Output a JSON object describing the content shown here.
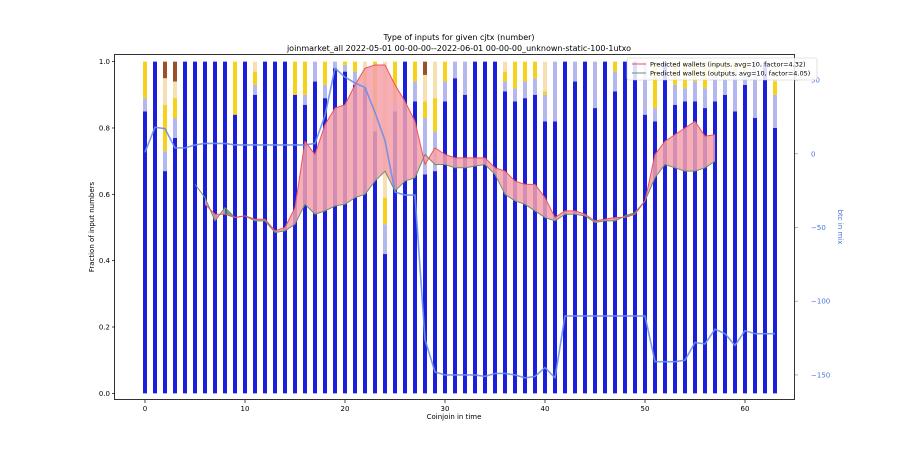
{
  "chart_data": {
    "type": "bar",
    "title": "Type of inputs for given cjtx (number)",
    "subtitle": "joinmarket_all 2022-05-01 00-00-00--2022-06-01 00-00-00_unknown-static-100-1utxo",
    "xlabel": "Coinjoin in time",
    "ylabel": "Fraction of input numbers",
    "y2label": "btc in mix",
    "xlim": [
      -3,
      65
    ],
    "ylim": [
      -0.02,
      1.02
    ],
    "y2lim": [
      -167,
      67
    ],
    "x_ticks": [
      "0",
      "10",
      "20",
      "30",
      "40",
      "50",
      "60"
    ],
    "y_ticks": [
      "0.0",
      "0.2",
      "0.4",
      "0.6",
      "0.8",
      "1.0"
    ],
    "y2_ticks": [
      "50",
      "0",
      "−50",
      "−100",
      "−150"
    ],
    "colors": {
      "blue_bar": "#1a1fdc",
      "lavender": "#b4b8ee",
      "yellow": "#f7d21c",
      "wheat": "#f6dfb0",
      "brown": "#9b4f2a",
      "orange": "#f2a23a",
      "inputs_line": "#f0505a",
      "inputs_fill": "#f4a1aa",
      "outputs_line": "#6b8f6b",
      "outputs_fill": "#2f8f6b",
      "btc_line": "#6d8ee8"
    },
    "bars": [
      {
        "x": 0,
        "segs": [
          0.85,
          0.04,
          0.11
        ]
      },
      {
        "x": 1,
        "segs": [
          1.0
        ]
      },
      {
        "x": 2,
        "segs": [
          0.67,
          0.06,
          0.14,
          0.08,
          0.05
        ]
      },
      {
        "x": 3,
        "segs": [
          0.77,
          0.06,
          0.06,
          0.05,
          0.06
        ]
      },
      {
        "x": 4,
        "segs": [
          1.0
        ]
      },
      {
        "x": 5,
        "segs": [
          1.0
        ]
      },
      {
        "x": 6,
        "segs": [
          1.0
        ]
      },
      {
        "x": 7,
        "segs": [
          1.0
        ]
      },
      {
        "x": 8,
        "segs": [
          1.0
        ]
      },
      {
        "x": 9,
        "segs": [
          0.84,
          0.0,
          0.16
        ]
      },
      {
        "x": 10,
        "segs": [
          1.0
        ]
      },
      {
        "x": 11,
        "segs": [
          0.9,
          0.03,
          0.04,
          0.03
        ]
      },
      {
        "x": 12,
        "segs": [
          1.0
        ]
      },
      {
        "x": 13,
        "segs": [
          1.0
        ]
      },
      {
        "x": 14,
        "segs": [
          1.0
        ]
      },
      {
        "x": 15,
        "segs": [
          0.9,
          0.0,
          0.1
        ]
      },
      {
        "x": 16,
        "segs": [
          0.87,
          0.03,
          0.1
        ]
      },
      {
        "x": 17,
        "segs": [
          0.94,
          0.06
        ]
      },
      {
        "x": 18,
        "segs": [
          0.89,
          0.04,
          0.07
        ]
      },
      {
        "x": 19,
        "segs": [
          0.98,
          0.02
        ]
      },
      {
        "x": 20,
        "segs": [
          0.97,
          0.02,
          0.01
        ]
      },
      {
        "x": 21,
        "segs": [
          0.93,
          0.04,
          0.03
        ]
      },
      {
        "x": 22,
        "segs": [
          0.92,
          0.02,
          0.03,
          0.03
        ]
      },
      {
        "x": 23,
        "segs": [
          0.79,
          0.03,
          0.18
        ]
      },
      {
        "x": 24,
        "segs": [
          0.42,
          0.09,
          0.08,
          0.41
        ]
      },
      {
        "x": 25,
        "segs": [
          0.85,
          0.03,
          0.12
        ]
      },
      {
        "x": 26,
        "segs": [
          1.0
        ]
      },
      {
        "x": 27,
        "segs": [
          0.88,
          0.06,
          0.06
        ]
      },
      {
        "x": 28,
        "segs": [
          0.66,
          0.17,
          0.05,
          0.08,
          0.04
        ]
      },
      {
        "x": 29,
        "segs": [
          0.67,
          0.12,
          0.1,
          0.11
        ]
      },
      {
        "x": 30,
        "segs": [
          0.88,
          0.06,
          0.06
        ]
      },
      {
        "x": 31,
        "segs": [
          0.95,
          0.05
        ]
      },
      {
        "x": 32,
        "segs": [
          0.9,
          0.1
        ]
      },
      {
        "x": 33,
        "segs": [
          1.0
        ]
      },
      {
        "x": 34,
        "segs": [
          1.0
        ]
      },
      {
        "x": 35,
        "segs": [
          1.0
        ]
      },
      {
        "x": 36,
        "segs": [
          0.91,
          0.03,
          0.03,
          0.03
        ]
      },
      {
        "x": 37,
        "segs": [
          0.88,
          0.04,
          0.08
        ]
      },
      {
        "x": 38,
        "segs": [
          0.89,
          0.05,
          0.06
        ]
      },
      {
        "x": 39,
        "segs": [
          0.9,
          0.05,
          0.05
        ]
      },
      {
        "x": 40,
        "segs": [
          0.82,
          0.08,
          0.01,
          0.09
        ]
      },
      {
        "x": 41,
        "segs": [
          0.82,
          0.18
        ]
      },
      {
        "x": 42,
        "segs": [
          1.0
        ]
      },
      {
        "x": 43,
        "segs": [
          0.94,
          0.06
        ]
      },
      {
        "x": 44,
        "segs": [
          1.0
        ]
      },
      {
        "x": 45,
        "segs": [
          0.86,
          0.14
        ]
      },
      {
        "x": 46,
        "segs": [
          1.0
        ]
      },
      {
        "x": 47,
        "segs": [
          0.91,
          0.06,
          0.03
        ]
      },
      {
        "x": 48,
        "segs": [
          1.0
        ]
      },
      {
        "x": 49,
        "segs": [
          1.0
        ]
      },
      {
        "x": 50,
        "segs": [
          0.84,
          0.16
        ]
      },
      {
        "x": 51,
        "segs": [
          0.82,
          0.04,
          0.14
        ]
      },
      {
        "x": 52,
        "segs": [
          1.0
        ]
      },
      {
        "x": 53,
        "segs": [
          0.87,
          0.06,
          0.07
        ]
      },
      {
        "x": 54,
        "segs": [
          0.88,
          0.04,
          0.08
        ]
      },
      {
        "x": 55,
        "segs": [
          0.88,
          0.06,
          0.06
        ]
      },
      {
        "x": 56,
        "segs": [
          0.86,
          0.06,
          0.08
        ]
      },
      {
        "x": 57,
        "segs": [
          0.88,
          0.08,
          0.04
        ]
      },
      {
        "x": 58,
        "segs": [
          0.9,
          0.05,
          0.05
        ]
      },
      {
        "x": 59,
        "segs": [
          0.85,
          0.12,
          0.03
        ]
      },
      {
        "x": 60,
        "segs": [
          0.93,
          0.04,
          0.03
        ]
      },
      {
        "x": 61,
        "segs": [
          0.83,
          0.17
        ]
      },
      {
        "x": 62,
        "segs": [
          1.0
        ]
      },
      {
        "x": 63,
        "segs": [
          0.8,
          0.1,
          0.04,
          0.06
        ]
      }
    ],
    "inputs_line": {
      "name": "Predicted wallets (inputs, avg=10, factor=4.32)",
      "x": [
        6,
        7,
        8,
        9,
        10,
        11,
        12,
        13,
        14,
        15,
        16,
        17,
        18,
        19,
        20,
        21,
        22,
        23,
        24,
        25,
        26,
        27,
        28,
        29,
        30,
        31,
        32,
        33,
        34,
        35,
        36,
        37,
        38,
        39,
        40,
        41,
        42,
        43,
        44,
        45,
        46,
        47,
        48,
        49,
        50,
        51,
        52,
        53,
        54,
        55,
        56,
        57
      ],
      "y": [
        0.57,
        0.54,
        0.54,
        0.53,
        0.535,
        0.525,
        0.525,
        0.49,
        0.5,
        0.56,
        0.76,
        0.72,
        0.81,
        0.86,
        0.87,
        0.93,
        0.98,
        0.99,
        0.99,
        0.93,
        0.88,
        0.82,
        0.69,
        0.74,
        0.72,
        0.71,
        0.71,
        0.71,
        0.71,
        0.68,
        0.67,
        0.64,
        0.63,
        0.63,
        0.59,
        0.53,
        0.55,
        0.55,
        0.54,
        0.52,
        0.525,
        0.53,
        0.53,
        0.54,
        0.58,
        0.72,
        0.76,
        0.78,
        0.8,
        0.82,
        0.775,
        0.78
      ]
    },
    "outputs_line": {
      "name": "Predicted wallets (outputs, avg=10, factor=4.05)",
      "x": [
        5,
        6,
        7,
        8,
        9,
        10,
        11,
        12,
        13,
        14,
        15,
        16,
        17,
        18,
        19,
        20,
        21,
        22,
        23,
        24,
        25,
        26,
        27,
        28,
        29,
        30,
        31,
        32,
        33,
        34,
        35,
        36,
        37,
        38,
        39,
        40,
        41,
        42,
        43,
        44,
        45,
        46,
        47,
        48,
        49,
        50,
        51,
        52,
        53,
        54,
        55,
        56,
        57
      ],
      "y": [
        0.63,
        0.59,
        0.52,
        0.56,
        0.53,
        0.535,
        0.52,
        0.52,
        0.485,
        0.49,
        0.51,
        0.57,
        0.54,
        0.55,
        0.565,
        0.57,
        0.59,
        0.6,
        0.64,
        0.67,
        0.61,
        0.64,
        0.65,
        0.72,
        0.69,
        0.69,
        0.68,
        0.68,
        0.685,
        0.69,
        0.66,
        0.6,
        0.58,
        0.57,
        0.55,
        0.53,
        0.52,
        0.54,
        0.54,
        0.535,
        0.515,
        0.52,
        0.52,
        0.535,
        0.545,
        0.58,
        0.65,
        0.69,
        0.68,
        0.67,
        0.67,
        0.68,
        0.7
      ]
    },
    "btc_line": {
      "x": [
        0,
        1,
        2,
        3,
        4,
        5,
        6,
        7,
        8,
        9,
        10,
        11,
        12,
        13,
        14,
        15,
        16,
        17,
        18,
        19,
        20,
        21,
        22,
        23,
        24,
        25,
        26,
        27,
        28,
        29,
        30,
        31,
        32,
        33,
        34,
        35,
        36,
        37,
        38,
        39,
        40,
        41,
        42,
        43,
        44,
        45,
        46,
        47,
        48,
        49,
        50,
        51,
        52,
        53,
        54,
        55,
        56,
        57,
        58,
        59,
        60,
        61,
        62,
        63
      ],
      "y": [
        1,
        18,
        17,
        4,
        4,
        6,
        7,
        7,
        7,
        6,
        6,
        6,
        6,
        6,
        6,
        6,
        6,
        7,
        26,
        58,
        52,
        48,
        45,
        28,
        9,
        -26,
        -28,
        -28,
        -126,
        -148,
        -150,
        -150,
        -150,
        -150,
        -151,
        -149,
        -149,
        -150,
        -152,
        -151,
        -145,
        -152,
        -110,
        -110,
        -110,
        -110,
        -110,
        -110,
        -110,
        -110,
        -110,
        -141,
        -141,
        -141,
        -140,
        -128,
        -129,
        -119,
        -122,
        -130,
        -120,
        -122,
        -122,
        -122
      ]
    },
    "legend_position": "top-right",
    "grid": false
  }
}
